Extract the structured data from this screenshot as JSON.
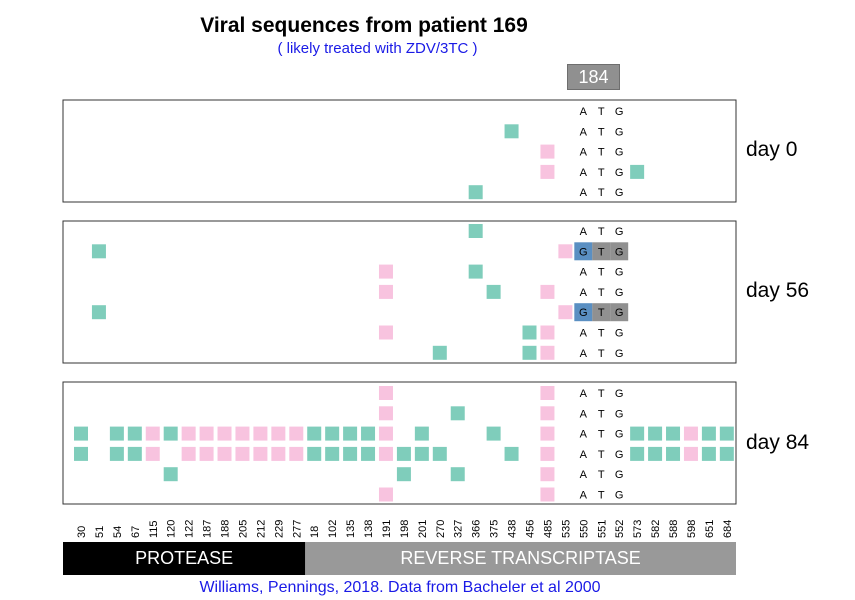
{
  "chart_data": {
    "type": "heatmap",
    "title": "Viral sequences from patient 169",
    "subtitle": "( likely treated with ZDV/3TC )",
    "caption": "Williams, Pennings, 2018. Data from Bacheler et al 2000",
    "highlight_position": "184",
    "positions": [
      "30",
      "51",
      "54",
      "67",
      "115",
      "120",
      "122",
      "187",
      "188",
      "205",
      "212",
      "229",
      "277",
      "18",
      "102",
      "135",
      "138",
      "191",
      "198",
      "201",
      "270",
      "327",
      "366",
      "375",
      "438",
      "456",
      "485",
      "535",
      "550",
      "551",
      "552",
      "573",
      "582",
      "588",
      "598",
      "651",
      "684"
    ],
    "codon_positions": [
      "550",
      "551",
      "552"
    ],
    "regions": [
      {
        "label": "PROTEASE",
        "from": "30",
        "to": "277",
        "color": "#000000"
      },
      {
        "label": "REVERSE TRANSCRIPTASE",
        "from": "18",
        "to": "684",
        "color": "#999999"
      }
    ],
    "colors": {
      "teal": "#7fcdbb",
      "pink": "#f8c3df",
      "blue": "#5a8fc2",
      "grey": "#909090"
    },
    "panels": [
      {
        "label": "day 0",
        "sequences": [
          {
            "codon": [
              "A",
              "T",
              "G"
            ],
            "mutated": [],
            "cells": []
          },
          {
            "codon": [
              "A",
              "T",
              "G"
            ],
            "mutated": [],
            "cells": [
              {
                "pos": "438",
                "color": "teal"
              }
            ]
          },
          {
            "codon": [
              "A",
              "T",
              "G"
            ],
            "mutated": [],
            "cells": [
              {
                "pos": "485",
                "color": "pink"
              }
            ]
          },
          {
            "codon": [
              "A",
              "T",
              "G"
            ],
            "mutated": [],
            "cells": [
              {
                "pos": "485",
                "color": "pink"
              },
              {
                "pos": "573",
                "color": "teal"
              }
            ]
          },
          {
            "codon": [
              "A",
              "T",
              "G"
            ],
            "mutated": [],
            "cells": [
              {
                "pos": "366",
                "color": "teal"
              }
            ]
          }
        ]
      },
      {
        "label": "day 56",
        "sequences": [
          {
            "codon": [
              "A",
              "T",
              "G"
            ],
            "mutated": [],
            "cells": [
              {
                "pos": "366",
                "color": "teal"
              }
            ]
          },
          {
            "codon": [
              "G",
              "T",
              "G"
            ],
            "mutated": [
              0
            ],
            "cells": [
              {
                "pos": "51",
                "color": "teal"
              },
              {
                "pos": "535",
                "color": "pink"
              }
            ]
          },
          {
            "codon": [
              "A",
              "T",
              "G"
            ],
            "mutated": [],
            "cells": [
              {
                "pos": "191",
                "color": "pink"
              },
              {
                "pos": "366",
                "color": "teal"
              }
            ]
          },
          {
            "codon": [
              "A",
              "T",
              "G"
            ],
            "mutated": [],
            "cells": [
              {
                "pos": "191",
                "color": "pink"
              },
              {
                "pos": "375",
                "color": "teal"
              },
              {
                "pos": "485",
                "color": "pink"
              }
            ]
          },
          {
            "codon": [
              "G",
              "T",
              "G"
            ],
            "mutated": [
              0
            ],
            "cells": [
              {
                "pos": "51",
                "color": "teal"
              },
              {
                "pos": "535",
                "color": "pink"
              }
            ]
          },
          {
            "codon": [
              "A",
              "T",
              "G"
            ],
            "mutated": [],
            "cells": [
              {
                "pos": "191",
                "color": "pink"
              },
              {
                "pos": "456",
                "color": "teal"
              },
              {
                "pos": "485",
                "color": "pink"
              }
            ]
          },
          {
            "codon": [
              "A",
              "T",
              "G"
            ],
            "mutated": [],
            "cells": [
              {
                "pos": "270",
                "color": "teal"
              },
              {
                "pos": "456",
                "color": "teal"
              },
              {
                "pos": "485",
                "color": "pink"
              }
            ]
          }
        ]
      },
      {
        "label": "day 84",
        "sequences": [
          {
            "codon": [
              "A",
              "T",
              "G"
            ],
            "mutated": [],
            "cells": [
              {
                "pos": "191",
                "color": "pink"
              },
              {
                "pos": "485",
                "color": "pink"
              }
            ]
          },
          {
            "codon": [
              "A",
              "T",
              "G"
            ],
            "mutated": [],
            "cells": [
              {
                "pos": "191",
                "color": "pink"
              },
              {
                "pos": "327",
                "color": "teal"
              },
              {
                "pos": "485",
                "color": "pink"
              }
            ]
          },
          {
            "codon": [
              "A",
              "T",
              "G"
            ],
            "mutated": [],
            "cells": [
              {
                "pos": "30",
                "color": "teal"
              },
              {
                "pos": "54",
                "color": "teal"
              },
              {
                "pos": "67",
                "color": "teal"
              },
              {
                "pos": "115",
                "color": "pink"
              },
              {
                "pos": "120",
                "color": "teal"
              },
              {
                "pos": "122",
                "color": "pink"
              },
              {
                "pos": "187",
                "color": "pink"
              },
              {
                "pos": "188",
                "color": "pink"
              },
              {
                "pos": "205",
                "color": "pink"
              },
              {
                "pos": "212",
                "color": "pink"
              },
              {
                "pos": "229",
                "color": "pink"
              },
              {
                "pos": "277",
                "color": "pink"
              },
              {
                "pos": "18",
                "color": "teal"
              },
              {
                "pos": "102",
                "color": "teal"
              },
              {
                "pos": "135",
                "color": "teal"
              },
              {
                "pos": "138",
                "color": "teal"
              },
              {
                "pos": "191",
                "color": "pink"
              },
              {
                "pos": "201",
                "color": "teal"
              },
              {
                "pos": "375",
                "color": "teal"
              },
              {
                "pos": "485",
                "color": "pink"
              },
              {
                "pos": "573",
                "color": "teal"
              },
              {
                "pos": "582",
                "color": "teal"
              },
              {
                "pos": "588",
                "color": "teal"
              },
              {
                "pos": "598",
                "color": "pink"
              },
              {
                "pos": "651",
                "color": "teal"
              },
              {
                "pos": "684",
                "color": "teal"
              }
            ]
          },
          {
            "codon": [
              "A",
              "T",
              "G"
            ],
            "mutated": [],
            "cells": [
              {
                "pos": "30",
                "color": "teal"
              },
              {
                "pos": "54",
                "color": "teal"
              },
              {
                "pos": "67",
                "color": "teal"
              },
              {
                "pos": "115",
                "color": "pink"
              },
              {
                "pos": "122",
                "color": "pink"
              },
              {
                "pos": "187",
                "color": "pink"
              },
              {
                "pos": "188",
                "color": "pink"
              },
              {
                "pos": "205",
                "color": "pink"
              },
              {
                "pos": "212",
                "color": "pink"
              },
              {
                "pos": "229",
                "color": "pink"
              },
              {
                "pos": "277",
                "color": "pink"
              },
              {
                "pos": "18",
                "color": "teal"
              },
              {
                "pos": "102",
                "color": "teal"
              },
              {
                "pos": "135",
                "color": "teal"
              },
              {
                "pos": "138",
                "color": "teal"
              },
              {
                "pos": "191",
                "color": "pink"
              },
              {
                "pos": "198",
                "color": "teal"
              },
              {
                "pos": "201",
                "color": "teal"
              },
              {
                "pos": "270",
                "color": "teal"
              },
              {
                "pos": "438",
                "color": "teal"
              },
              {
                "pos": "485",
                "color": "pink"
              },
              {
                "pos": "573",
                "color": "teal"
              },
              {
                "pos": "582",
                "color": "teal"
              },
              {
                "pos": "588",
                "color": "teal"
              },
              {
                "pos": "598",
                "color": "pink"
              },
              {
                "pos": "651",
                "color": "teal"
              },
              {
                "pos": "684",
                "color": "teal"
              }
            ]
          },
          {
            "codon": [
              "A",
              "T",
              "G"
            ],
            "mutated": [],
            "cells": [
              {
                "pos": "120",
                "color": "teal"
              },
              {
                "pos": "198",
                "color": "teal"
              },
              {
                "pos": "327",
                "color": "teal"
              },
              {
                "pos": "485",
                "color": "pink"
              }
            ]
          },
          {
            "codon": [
              "A",
              "T",
              "G"
            ],
            "mutated": [],
            "cells": [
              {
                "pos": "191",
                "color": "pink"
              },
              {
                "pos": "485",
                "color": "pink"
              }
            ]
          }
        ]
      }
    ]
  }
}
